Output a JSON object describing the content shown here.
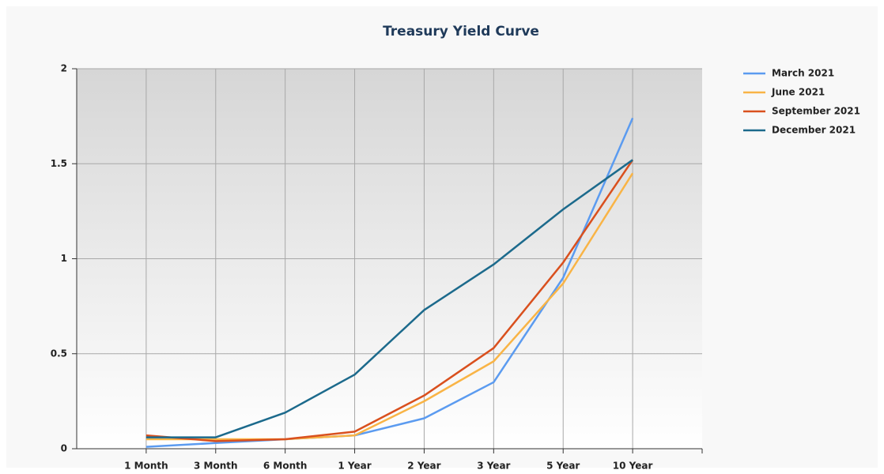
{
  "chart_data": {
    "type": "line",
    "title": "Treasury Yield Curve",
    "categories": [
      "1 Month",
      "3 Month",
      "6 Month",
      "1 Year",
      "2 Year",
      "3 Year",
      "5 Year",
      "10 Year"
    ],
    "series": [
      {
        "name": "March 2021",
        "color": "#5b9bf0",
        "values": [
          0.01,
          0.03,
          0.05,
          0.07,
          0.16,
          0.35,
          0.9,
          1.74
        ]
      },
      {
        "name": "June 2021",
        "color": "#f9b446",
        "values": [
          0.05,
          0.05,
          0.05,
          0.07,
          0.25,
          0.46,
          0.87,
          1.45
        ]
      },
      {
        "name": "September 2021",
        "color": "#d9501e",
        "values": [
          0.07,
          0.04,
          0.05,
          0.09,
          0.28,
          0.53,
          0.98,
          1.52
        ]
      },
      {
        "name": "December 2021",
        "color": "#1c6a8c",
        "values": [
          0.06,
          0.06,
          0.19,
          0.39,
          0.73,
          0.97,
          1.26,
          1.52
        ]
      }
    ],
    "ylim": [
      0,
      2
    ],
    "yticks": [
      0,
      0.5,
      1,
      1.5,
      2
    ],
    "grid": true,
    "legend": "top-right"
  }
}
